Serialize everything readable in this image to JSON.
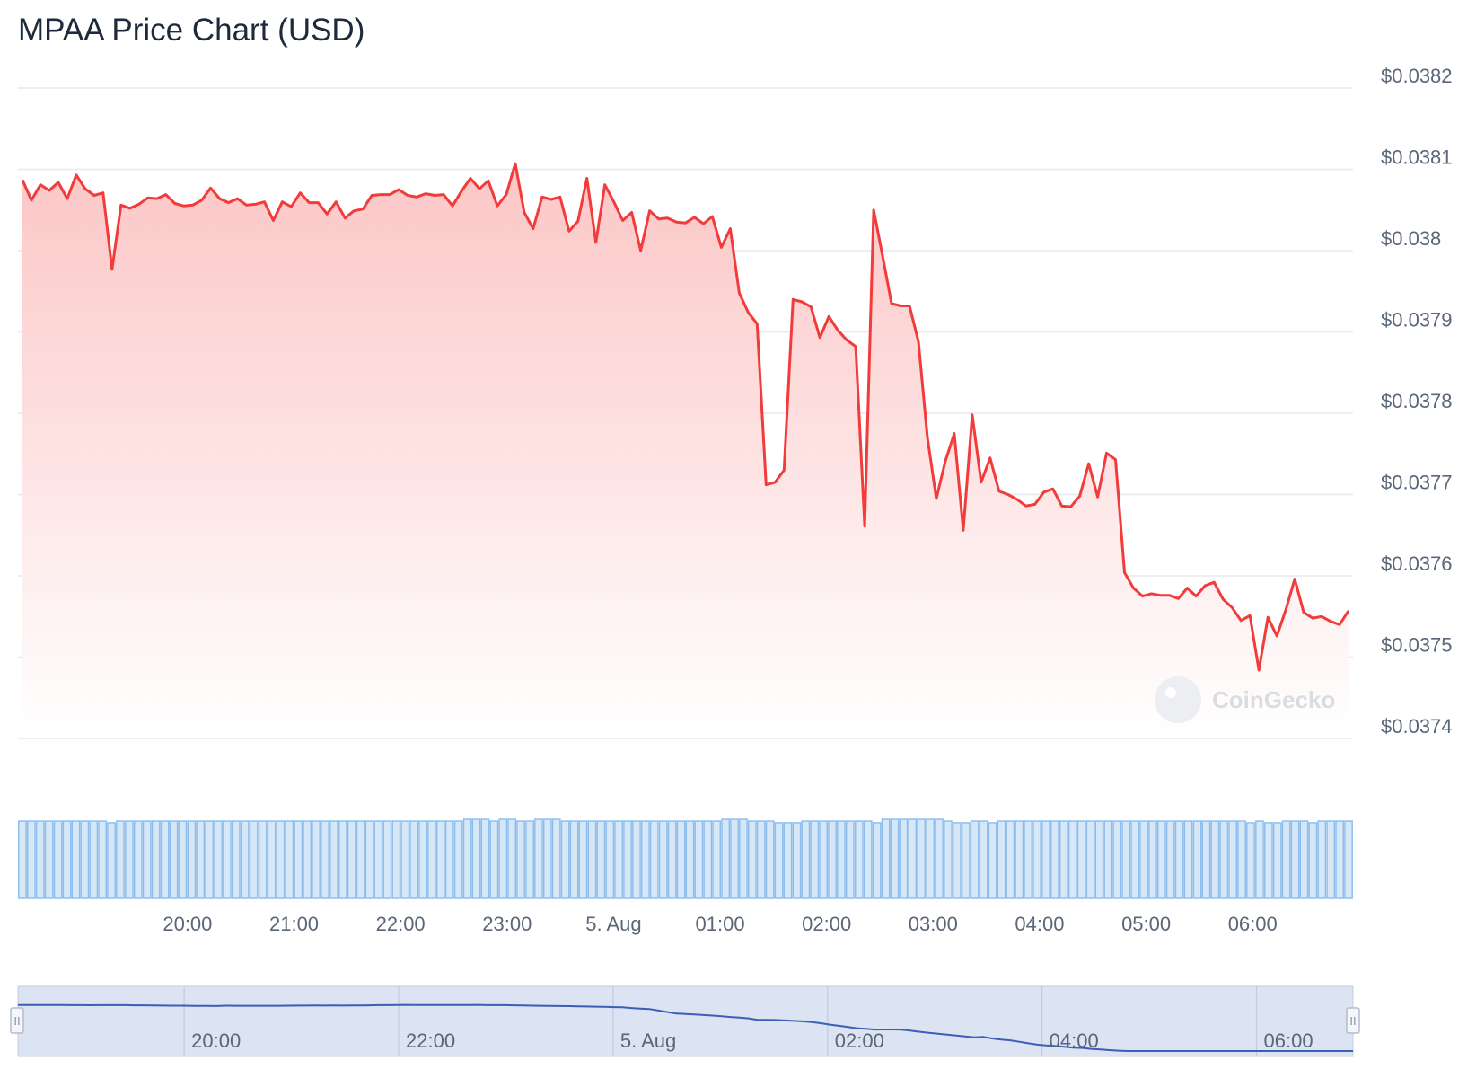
{
  "title": "MPAA Price Chart (USD)",
  "watermark": "CoinGecko",
  "colors": {
    "price_line": "#f23b3b",
    "area_top": "#fcc6c6",
    "area_bottom": "#ffffff",
    "volume_bar": "#8bbcec",
    "volume_bar_fill": "#d6e7f7",
    "grid": "#e6e9ee",
    "navigator_fill": "#dce3f2",
    "navigator_line": "#3b5fb7"
  },
  "chart_data": {
    "type": "line",
    "title": "MPAA Price Chart (USD)",
    "xlabel": "",
    "ylabel": "",
    "ylim": [
      0.0374,
      0.0382
    ],
    "y_ticks": [
      {
        "value": 0.0382,
        "label": "$0.0382"
      },
      {
        "value": 0.0381,
        "label": "$0.0381"
      },
      {
        "value": 0.038,
        "label": "$0.038"
      },
      {
        "value": 0.0379,
        "label": "$0.0379"
      },
      {
        "value": 0.0378,
        "label": "$0.0378"
      },
      {
        "value": 0.0377,
        "label": "$0.0377"
      },
      {
        "value": 0.0376,
        "label": "$0.0376"
      },
      {
        "value": 0.0375,
        "label": "$0.0375"
      },
      {
        "value": 0.0374,
        "label": "$0.0374"
      }
    ],
    "x_ticks": [
      {
        "hour": 20,
        "label": "20:00"
      },
      {
        "hour": 21,
        "label": "21:00"
      },
      {
        "hour": 22,
        "label": "22:00"
      },
      {
        "hour": 23,
        "label": "23:00"
      },
      {
        "hour": 24,
        "label": "5. Aug"
      },
      {
        "hour": 25,
        "label": "01:00"
      },
      {
        "hour": 26,
        "label": "02:00"
      },
      {
        "hour": 27,
        "label": "03:00"
      },
      {
        "hour": 28,
        "label": "04:00"
      },
      {
        "hour": 29,
        "label": "05:00"
      },
      {
        "hour": 30,
        "label": "06:00"
      }
    ],
    "grid": true,
    "legend": "none",
    "price_series": {
      "name": "",
      "hour_start": 18.45,
      "hour_end": 30.9,
      "values": [
        0.038087,
        0.038062,
        0.038081,
        0.038074,
        0.038084,
        0.038064,
        0.038093,
        0.038076,
        0.038068,
        0.038071,
        0.037977,
        0.038056,
        0.038052,
        0.038057,
        0.038065,
        0.038064,
        0.038069,
        0.038058,
        0.038055,
        0.038056,
        0.038062,
        0.038077,
        0.038064,
        0.038059,
        0.038064,
        0.038056,
        0.038057,
        0.03806,
        0.038037,
        0.03806,
        0.038054,
        0.038071,
        0.038059,
        0.038059,
        0.038045,
        0.03806,
        0.03804,
        0.038049,
        0.038051,
        0.038068,
        0.038069,
        0.038069,
        0.038075,
        0.038068,
        0.038066,
        0.03807,
        0.038068,
        0.038069,
        0.038055,
        0.038073,
        0.038089,
        0.038076,
        0.038086,
        0.038055,
        0.038069,
        0.038107,
        0.038047,
        0.038027,
        0.038066,
        0.038063,
        0.038066,
        0.038024,
        0.038036,
        0.038089,
        0.03801,
        0.038081,
        0.03806,
        0.038037,
        0.038047,
        0.038,
        0.038049,
        0.038039,
        0.03804,
        0.038035,
        0.038034,
        0.038041,
        0.038033,
        0.038042,
        0.038004,
        0.038027,
        0.037948,
        0.037924,
        0.03791,
        0.037712,
        0.037715,
        0.03773,
        0.03794,
        0.037937,
        0.037931,
        0.037893,
        0.037919,
        0.037902,
        0.03789,
        0.037882,
        0.037661,
        0.03805,
        0.037993,
        0.037935,
        0.037932,
        0.037932,
        0.037888,
        0.03777,
        0.037695,
        0.037741,
        0.037775,
        0.037656,
        0.037798,
        0.037715,
        0.037745,
        0.037704,
        0.0377,
        0.037694,
        0.037686,
        0.037688,
        0.037703,
        0.037707,
        0.037686,
        0.037685,
        0.037698,
        0.037738,
        0.037697,
        0.037751,
        0.037743,
        0.037604,
        0.037585,
        0.037575,
        0.037578,
        0.037576,
        0.037576,
        0.037572,
        0.037585,
        0.037575,
        0.037588,
        0.037592,
        0.037571,
        0.037561,
        0.037545,
        0.037551,
        0.037484,
        0.037549,
        0.037526,
        0.037558,
        0.037596,
        0.037555,
        0.037548,
        0.03755,
        0.037544,
        0.03754,
        0.037557
      ]
    },
    "volume_series": {
      "name": "",
      "values": [
        0.88,
        0.88,
        0.88,
        0.88,
        0.88,
        0.88,
        0.88,
        0.88,
        0.88,
        0.88,
        0.86,
        0.88,
        0.88,
        0.88,
        0.88,
        0.88,
        0.88,
        0.88,
        0.88,
        0.88,
        0.88,
        0.88,
        0.88,
        0.88,
        0.88,
        0.88,
        0.88,
        0.88,
        0.88,
        0.88,
        0.88,
        0.88,
        0.88,
        0.88,
        0.88,
        0.88,
        0.88,
        0.88,
        0.88,
        0.88,
        0.88,
        0.88,
        0.88,
        0.88,
        0.88,
        0.88,
        0.88,
        0.88,
        0.88,
        0.88,
        0.9,
        0.9,
        0.9,
        0.88,
        0.9,
        0.9,
        0.88,
        0.88,
        0.9,
        0.9,
        0.9,
        0.88,
        0.88,
        0.88,
        0.88,
        0.88,
        0.88,
        0.88,
        0.88,
        0.88,
        0.88,
        0.88,
        0.88,
        0.88,
        0.88,
        0.88,
        0.88,
        0.88,
        0.88,
        0.9,
        0.9,
        0.9,
        0.88,
        0.88,
        0.88,
        0.86,
        0.86,
        0.86,
        0.88,
        0.88,
        0.88,
        0.88,
        0.88,
        0.88,
        0.88,
        0.88,
        0.86,
        0.9,
        0.9,
        0.9,
        0.9,
        0.9,
        0.9,
        0.9,
        0.88,
        0.86,
        0.86,
        0.88,
        0.88,
        0.86,
        0.88,
        0.88,
        0.88,
        0.88,
        0.88,
        0.88,
        0.88,
        0.88,
        0.88,
        0.88,
        0.88,
        0.88,
        0.88,
        0.88,
        0.88,
        0.88,
        0.88,
        0.88,
        0.88,
        0.88,
        0.88,
        0.88,
        0.88,
        0.88,
        0.88,
        0.88,
        0.88,
        0.88,
        0.86,
        0.88,
        0.86,
        0.86,
        0.88,
        0.88,
        0.88,
        0.86,
        0.88,
        0.88,
        0.88,
        0.88
      ]
    },
    "navigator": {
      "x_ticks": [
        {
          "hour": 20,
          "label": "20:00"
        },
        {
          "hour": 22,
          "label": "22:00"
        },
        {
          "hour": 24,
          "label": "5. Aug"
        },
        {
          "hour": 26,
          "label": "02:00"
        },
        {
          "hour": 28,
          "label": "04:00"
        },
        {
          "hour": 30,
          "label": "06:00"
        }
      ],
      "hour_start": 18.45,
      "hour_end": 30.9,
      "handle_label": "II"
    }
  }
}
